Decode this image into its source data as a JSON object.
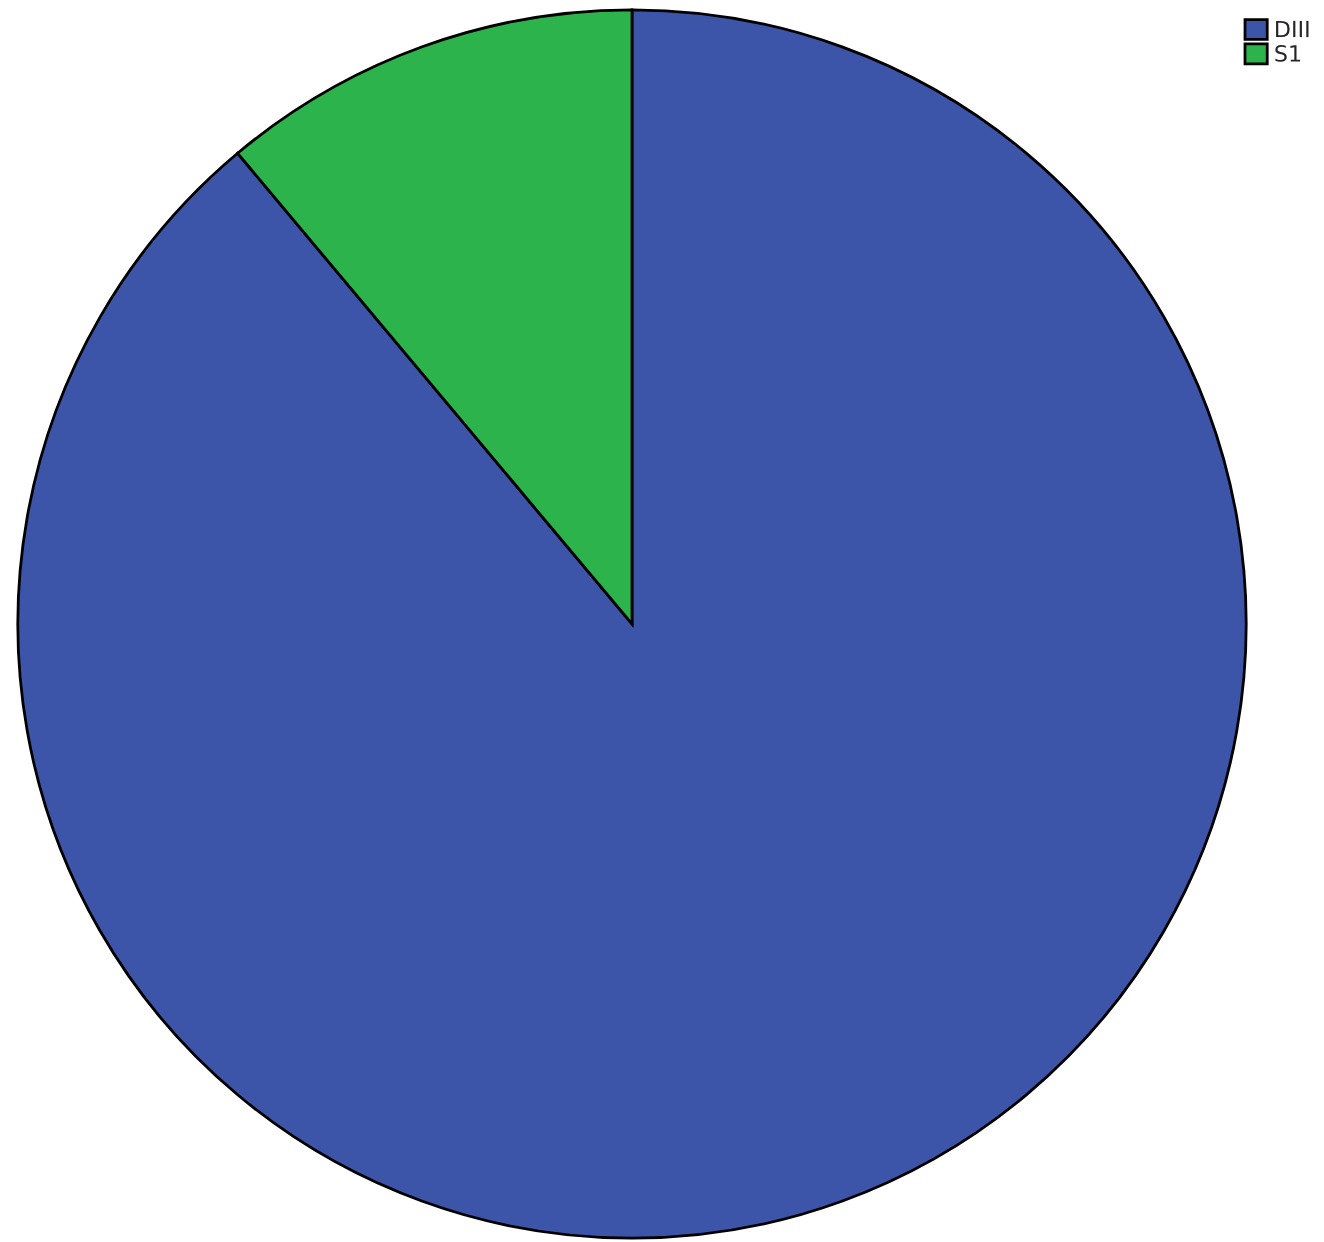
{
  "chart_data": {
    "type": "pie",
    "categories": [
      "DIII",
      "S1"
    ],
    "values": [
      88.9,
      11.1
    ],
    "colors": [
      "#3c55a8",
      "#2db34b"
    ],
    "legend": "top right"
  }
}
